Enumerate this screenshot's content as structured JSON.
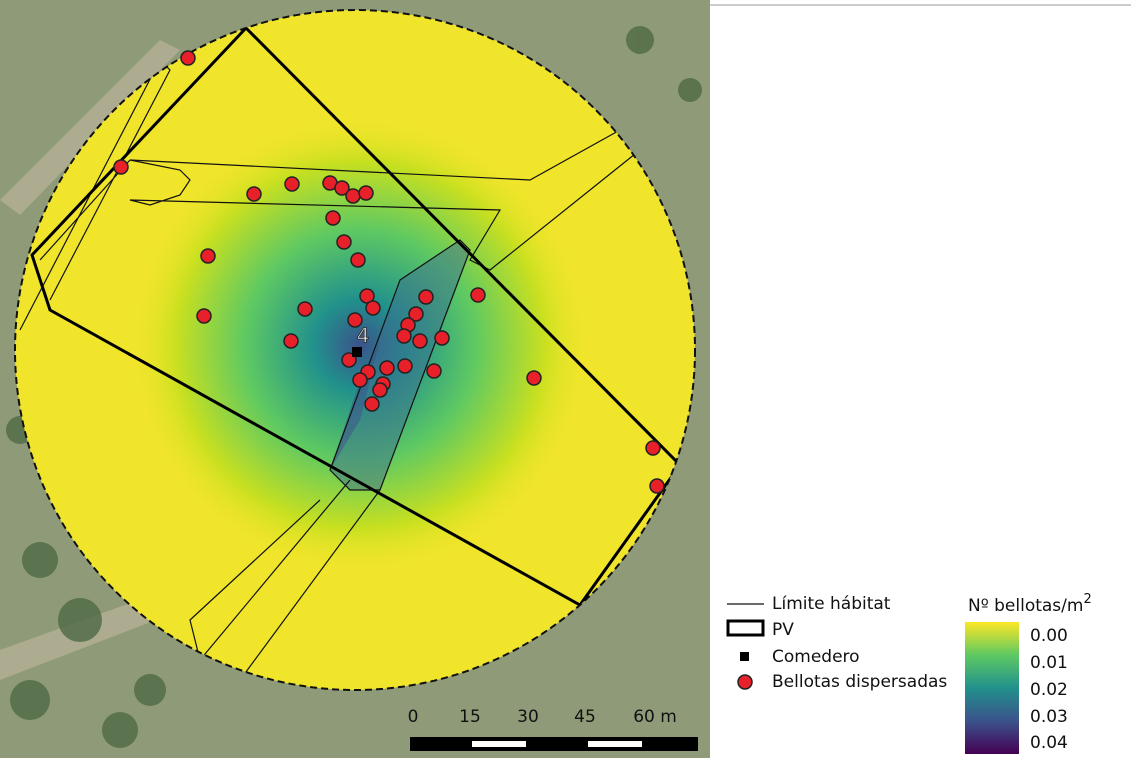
{
  "map": {
    "site_label": "4",
    "scale_bar": {
      "labels": [
        "0",
        "15",
        "30",
        "45",
        "60 m"
      ]
    },
    "legend": {
      "items": [
        "Límite hábitat",
        "PV",
        "Comedero",
        "Bellotas dispersadas"
      ],
      "colorbar": {
        "title": "Nº bellotas/m",
        "title_superscript": "2",
        "ticks": [
          "0.00",
          "0.01",
          "0.02",
          "0.03",
          "0.04"
        ]
      }
    }
  }
}
